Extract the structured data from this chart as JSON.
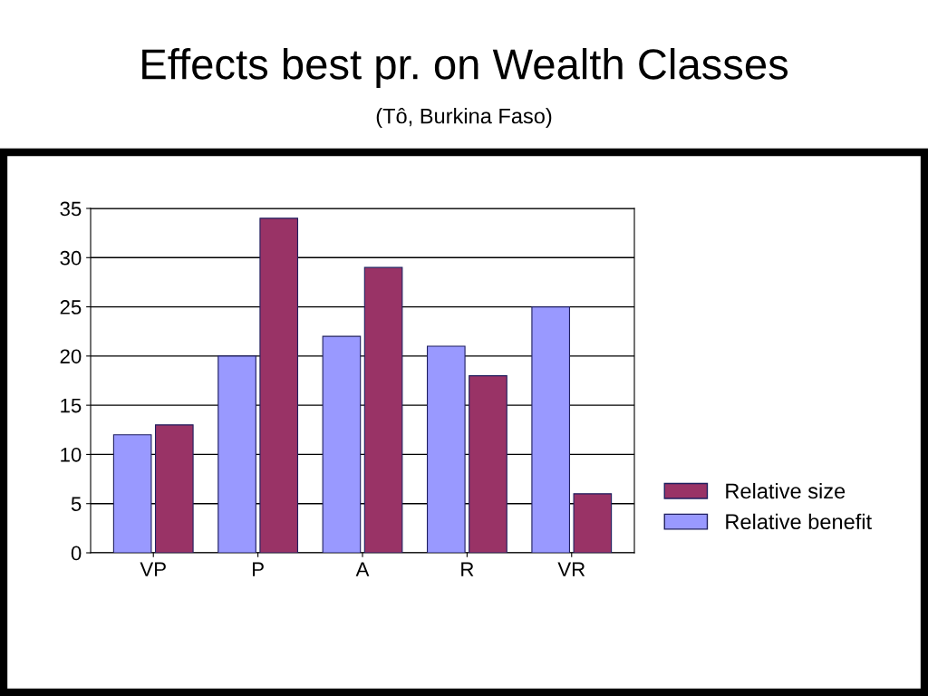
{
  "chart_data": {
    "type": "bar",
    "title": "Effects best pr. on Wealth Classes",
    "subtitle": "(Tô, Burkina Faso)",
    "categories": [
      "VP",
      "P",
      "A",
      "R",
      "VR"
    ],
    "series": [
      {
        "name": "Relative size",
        "color": "#993366",
        "values": [
          13,
          34,
          29,
          18,
          6
        ]
      },
      {
        "name": "Relative benefit",
        "color": "#9999ff",
        "values": [
          12,
          20,
          22,
          21,
          25
        ]
      }
    ],
    "ylim": [
      0,
      35
    ],
    "yticks": [
      0,
      5,
      10,
      15,
      20,
      25,
      30,
      35
    ],
    "grid": "y",
    "legend": "right"
  }
}
